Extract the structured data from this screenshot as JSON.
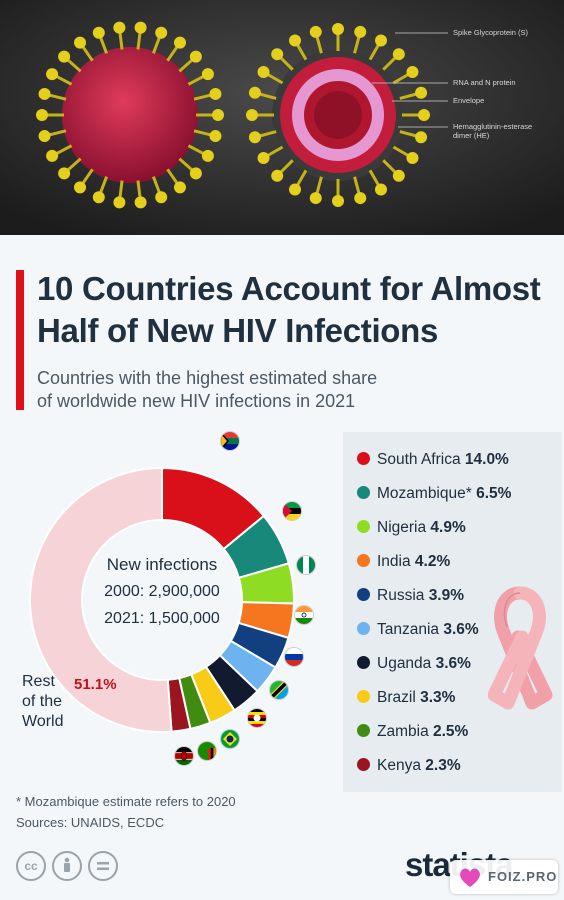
{
  "hero": {
    "labels": {
      "spike": "Spike Glycoprotein (S)",
      "rna": "RNA and N protein",
      "envelope": "Envelope",
      "he1": "Hemagglutinin-esterase",
      "he2": "dimer (HE)"
    }
  },
  "header": {
    "title_line1": "10 Countries Account for Almost",
    "title_line2": "Half of New HIV Infections",
    "subtitle_line1": "Countries with the highest estimated share",
    "subtitle_line2": "of worldwide new HIV infections in 2021"
  },
  "center": {
    "line1": "New infections",
    "line2": "2000: 2,900,000",
    "line3": "2021: 1,500,000"
  },
  "rest": {
    "line1": "Rest",
    "line2": "of the",
    "line3": "World",
    "value": "51.1%"
  },
  "chart_data": {
    "type": "pie",
    "subtype": "donut",
    "title": "10 Countries Account for Almost Half of New HIV Infections",
    "subtitle": "Countries with the highest estimated share of worldwide new HIV infections in 2021",
    "unit": "%",
    "slices": [
      {
        "label": "South Africa",
        "value": 14.0,
        "color": "#d90f1a",
        "legend": "South Africa",
        "value_text": "14.0%"
      },
      {
        "label": "Mozambique",
        "value": 6.5,
        "color": "#17887a",
        "legend": "Mozambique*",
        "value_text": "6.5%"
      },
      {
        "label": "Nigeria",
        "value": 4.9,
        "color": "#8fdc25",
        "legend": "Nigeria",
        "value_text": "4.9%"
      },
      {
        "label": "India",
        "value": 4.2,
        "color": "#f5761f",
        "legend": "India",
        "value_text": "4.2%"
      },
      {
        "label": "Russia",
        "value": 3.9,
        "color": "#113f80",
        "legend": "Russia",
        "value_text": "3.9%"
      },
      {
        "label": "Tanzania",
        "value": 3.6,
        "color": "#6cb3ef",
        "legend": "Tanzania",
        "value_text": "3.6%"
      },
      {
        "label": "Uganda",
        "value": 3.6,
        "color": "#111a2e",
        "legend": "Uganda",
        "value_text": "3.6%"
      },
      {
        "label": "Brazil",
        "value": 3.3,
        "color": "#f7cb16",
        "legend": "Brazil",
        "value_text": "3.3%"
      },
      {
        "label": "Zambia",
        "value": 2.5,
        "color": "#3f8c10",
        "legend": "Zambia",
        "value_text": "2.5%"
      },
      {
        "label": "Kenya",
        "value": 2.3,
        "color": "#9a1520",
        "legend": "Kenya",
        "value_text": "2.3%"
      },
      {
        "label": "Rest of the World",
        "value": 51.1,
        "color": "#f6d3d6"
      }
    ]
  },
  "footer": {
    "footnote": "* Mozambique estimate refers to 2020",
    "sources": "Sources: UNAIDS, ECDC",
    "logo": "statista",
    "watermark": "FOIZ.PRO",
    "icons": [
      "creative-commons-icon",
      "attribution-icon",
      "no-derivatives-icon"
    ]
  }
}
